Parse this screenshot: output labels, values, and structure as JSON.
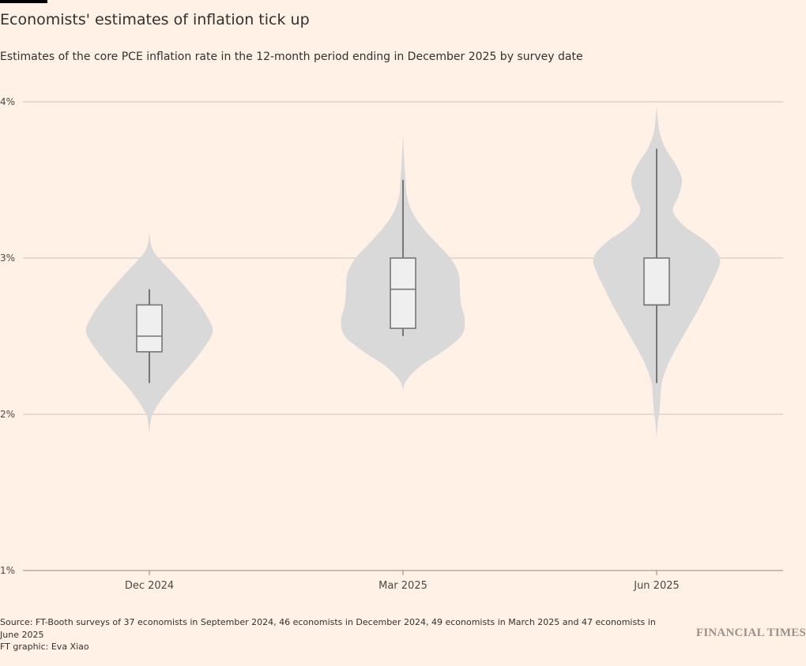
{
  "header": {
    "title": "Economists' estimates of inflation tick up",
    "subtitle": "Estimates of the core PCE inflation rate in the 12-month period ending in December 2025 by survey date"
  },
  "footer": {
    "source": "Source: FT-Booth surveys of 37 economists in September 2024, 46 economists in December 2024, 49 economists in March 2025 and 47 economists in June 2025",
    "credit": "FT graphic: Eva Xiao",
    "logo": "FINANCIAL TIMES"
  },
  "colors": {
    "background": "#fff1e5",
    "violin": "#d9d9d9",
    "box_fill": "#efefef",
    "box_stroke": "#767676",
    "gridline": "#ccc1b7",
    "axis": "#8f8683"
  },
  "chart_data": {
    "type": "violin",
    "title": "Economists' estimates of inflation tick up",
    "subtitle": "Estimates of the core PCE inflation rate in the 12-month period ending in December 2025 by survey date",
    "xlabel": "",
    "ylabel": "",
    "ylim": [
      1,
      4
    ],
    "yticks": [
      1,
      2,
      3,
      4
    ],
    "ytick_labels": [
      "1%",
      "2%",
      "3%",
      "4%"
    ],
    "grid": true,
    "categories": [
      "Dec 2024",
      "Mar 2025",
      "Jun 2025"
    ],
    "series": [
      {
        "name": "Dec 2024",
        "box": {
          "whisker_low": 2.2,
          "q1": 2.4,
          "median": 2.5,
          "q3": 2.7,
          "whisker_high": 2.8
        },
        "density": [
          [
            1.88,
            0
          ],
          [
            1.95,
            0.02
          ],
          [
            2.0,
            0.05
          ],
          [
            2.1,
            0.2
          ],
          [
            2.2,
            0.4
          ],
          [
            2.3,
            0.62
          ],
          [
            2.4,
            0.82
          ],
          [
            2.5,
            0.98
          ],
          [
            2.55,
            1.0
          ],
          [
            2.6,
            0.95
          ],
          [
            2.7,
            0.8
          ],
          [
            2.8,
            0.6
          ],
          [
            2.9,
            0.38
          ],
          [
            3.0,
            0.15
          ],
          [
            3.05,
            0.06
          ],
          [
            3.1,
            0.02
          ],
          [
            3.17,
            0
          ]
        ]
      },
      {
        "name": "Mar 2025",
        "box": {
          "whisker_low": 2.5,
          "q1": 2.55,
          "median": 2.8,
          "q3": 3.0,
          "whisker_high": 3.5
        },
        "density": [
          [
            2.1,
            0
          ],
          [
            2.2,
            0.03
          ],
          [
            2.3,
            0.25
          ],
          [
            2.4,
            0.62
          ],
          [
            2.5,
            0.92
          ],
          [
            2.6,
            0.98
          ],
          [
            2.7,
            0.92
          ],
          [
            2.8,
            0.9
          ],
          [
            2.9,
            0.88
          ],
          [
            3.0,
            0.75
          ],
          [
            3.1,
            0.52
          ],
          [
            3.2,
            0.3
          ],
          [
            3.3,
            0.14
          ],
          [
            3.4,
            0.06
          ],
          [
            3.5,
            0.04
          ],
          [
            3.6,
            0.025
          ],
          [
            3.7,
            0.01
          ],
          [
            3.8,
            0
          ]
        ]
      },
      {
        "name": "Jun 2025",
        "box": {
          "whisker_low": 2.2,
          "q1": 2.7,
          "median": 2.7,
          "q3": 3.0,
          "whisker_high": 3.7
        },
        "density": [
          [
            1.85,
            0
          ],
          [
            1.95,
            0.02
          ],
          [
            2.0,
            0.04
          ],
          [
            2.1,
            0.06
          ],
          [
            2.2,
            0.08
          ],
          [
            2.3,
            0.16
          ],
          [
            2.4,
            0.28
          ],
          [
            2.5,
            0.42
          ],
          [
            2.6,
            0.56
          ],
          [
            2.7,
            0.7
          ],
          [
            2.8,
            0.82
          ],
          [
            2.9,
            0.94
          ],
          [
            3.0,
            1.0
          ],
          [
            3.1,
            0.8
          ],
          [
            3.2,
            0.45
          ],
          [
            3.3,
            0.26
          ],
          [
            3.4,
            0.35
          ],
          [
            3.5,
            0.4
          ],
          [
            3.6,
            0.3
          ],
          [
            3.7,
            0.14
          ],
          [
            3.8,
            0.05
          ],
          [
            3.9,
            0.015
          ],
          [
            3.98,
            0
          ]
        ]
      }
    ]
  }
}
